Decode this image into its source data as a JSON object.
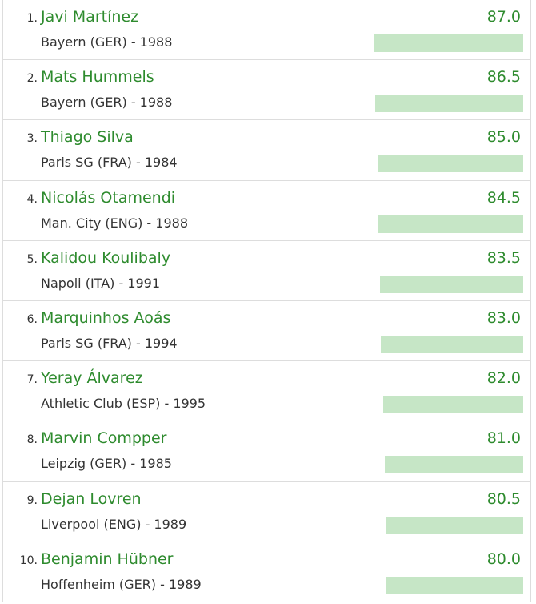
{
  "list": {
    "rows": [
      {
        "rank": "1.",
        "name": "Javi Martínez",
        "club": "Bayern (GER) - 1988",
        "score": 87.0,
        "score_label": "87.0"
      },
      {
        "rank": "2.",
        "name": "Mats Hummels",
        "club": "Bayern (GER) - 1988",
        "score": 86.5,
        "score_label": "86.5"
      },
      {
        "rank": "3.",
        "name": "Thiago Silva",
        "club": "Paris SG (FRA) - 1984",
        "score": 85.0,
        "score_label": "85.0"
      },
      {
        "rank": "4.",
        "name": "Nicolás Otamendi",
        "club": "Man. City (ENG) - 1988",
        "score": 84.5,
        "score_label": "84.5"
      },
      {
        "rank": "5.",
        "name": "Kalidou Koulibaly",
        "club": "Napoli (ITA) - 1991",
        "score": 83.5,
        "score_label": "83.5"
      },
      {
        "rank": "6.",
        "name": "Marquinhos Aoás",
        "club": "Paris SG (FRA) - 1994",
        "score": 83.0,
        "score_label": "83.0"
      },
      {
        "rank": "7.",
        "name": "Yeray Álvarez",
        "club": "Athletic Club (ESP) - 1995",
        "score": 82.0,
        "score_label": "82.0"
      },
      {
        "rank": "8.",
        "name": "Marvin Compper",
        "club": "Leipzig (GER) - 1985",
        "score": 81.0,
        "score_label": "81.0"
      },
      {
        "rank": "9.",
        "name": "Dejan Lovren",
        "club": "Liverpool (ENG) - 1989",
        "score": 80.5,
        "score_label": "80.5"
      },
      {
        "rank": "10.",
        "name": "Benjamin Hübner",
        "club": "Hoffenheim (GER) - 1989",
        "score": 80.0,
        "score_label": "80.0"
      }
    ]
  }
}
